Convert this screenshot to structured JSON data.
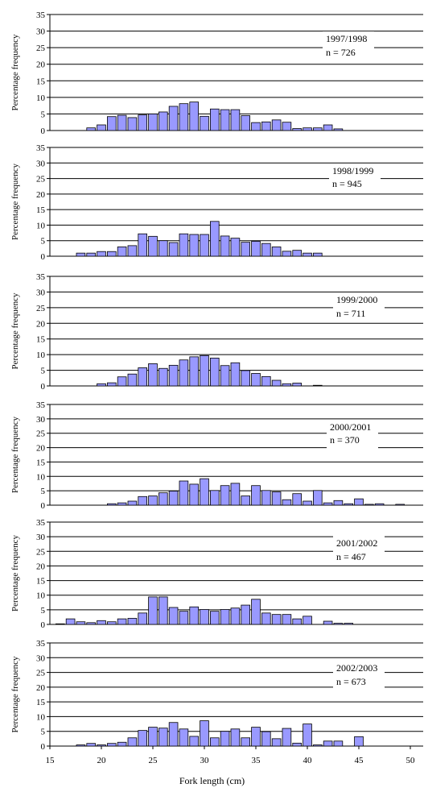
{
  "ylabel": "Percentage frequency",
  "xlabel": "Fork length (cm)",
  "colors": {
    "bar_fill": "#9999ff",
    "bar_stroke": "#000000",
    "grid": "#000000"
  },
  "chart_data": [
    {
      "type": "bar",
      "season": "1997/1998",
      "n_label": "n = 726",
      "ylim": [
        0,
        35
      ],
      "yticks": [
        "0",
        "5",
        "10",
        "15",
        "20",
        "25",
        "30",
        "35"
      ],
      "xlim": [
        15,
        50
      ],
      "xticks": [],
      "categories": [
        16,
        17,
        18,
        19,
        20,
        21,
        22,
        23,
        24,
        25,
        26,
        27,
        28,
        29,
        30,
        31,
        32,
        33,
        34,
        35,
        36,
        37,
        38,
        39,
        40,
        41,
        42,
        43,
        44,
        45,
        46,
        47,
        48,
        49
      ],
      "values": [
        0,
        0,
        0,
        0.8,
        1.7,
        4.2,
        4.6,
        3.9,
        4.7,
        5.0,
        5.6,
        7.3,
        8.1,
        8.6,
        4.3,
        6.5,
        6.3,
        6.3,
        4.5,
        2.4,
        2.6,
        3.2,
        2.5,
        0.6,
        0.8,
        0.8,
        1.7,
        0.5,
        0,
        0,
        0,
        0,
        0,
        0
      ]
    },
    {
      "type": "bar",
      "season": "1998/1999",
      "n_label": "n = 945",
      "ylim": [
        0,
        35
      ],
      "yticks": [
        "0",
        "5",
        "10",
        "15",
        "20",
        "25",
        "30",
        "35"
      ],
      "xlim": [
        15,
        50
      ],
      "xticks": [],
      "categories": [
        16,
        17,
        18,
        19,
        20,
        21,
        22,
        23,
        24,
        25,
        26,
        27,
        28,
        29,
        30,
        31,
        32,
        33,
        34,
        35,
        36,
        37,
        38,
        39,
        40,
        41,
        42,
        43,
        44,
        45,
        46,
        47,
        48,
        49
      ],
      "values": [
        0,
        0,
        1.0,
        1.0,
        1.5,
        1.5,
        3.0,
        3.4,
        7.2,
        6.4,
        5.0,
        4.4,
        7.2,
        7.0,
        7.0,
        11.2,
        6.5,
        5.8,
        4.5,
        4.8,
        4.1,
        3.0,
        1.6,
        1.9,
        1.0,
        1.0,
        0,
        0,
        0,
        0,
        0,
        0,
        0,
        0
      ]
    },
    {
      "type": "bar",
      "season": "1999/2000",
      "n_label": "n = 711",
      "ylim": [
        0,
        35
      ],
      "yticks": [
        "0",
        "5",
        "10",
        "15",
        "20",
        "25",
        "30",
        "35"
      ],
      "xlim": [
        15,
        50
      ],
      "xticks": [],
      "categories": [
        16,
        17,
        18,
        19,
        20,
        21,
        22,
        23,
        24,
        25,
        26,
        27,
        28,
        29,
        30,
        31,
        32,
        33,
        34,
        35,
        36,
        37,
        38,
        39,
        40,
        41,
        42,
        43,
        44,
        45,
        46,
        47,
        48,
        49
      ],
      "values": [
        0,
        0,
        0,
        0,
        0.7,
        1.0,
        2.9,
        3.8,
        5.8,
        7.1,
        5.6,
        6.6,
        8.3,
        9.3,
        9.7,
        8.9,
        6.5,
        7.4,
        4.9,
        4.0,
        3.0,
        1.8,
        0.7,
        0.9,
        0,
        0.2,
        0,
        0,
        0,
        0,
        0,
        0,
        0,
        0
      ]
    },
    {
      "type": "bar",
      "season": "2000/2001",
      "n_label": "n = 370",
      "ylim": [
        0,
        35
      ],
      "yticks": [
        "0",
        "5",
        "10",
        "15",
        "20",
        "25",
        "30",
        "35"
      ],
      "xlim": [
        15,
        50
      ],
      "xticks": [],
      "categories": [
        16,
        17,
        18,
        19,
        20,
        21,
        22,
        23,
        24,
        25,
        26,
        27,
        28,
        29,
        30,
        31,
        32,
        33,
        34,
        35,
        36,
        37,
        38,
        39,
        40,
        41,
        42,
        43,
        44,
        45,
        46,
        47,
        48,
        49
      ],
      "values": [
        0,
        0,
        0,
        0,
        0,
        0.5,
        0.8,
        1.4,
        3.0,
        3.2,
        4.3,
        4.9,
        8.4,
        7.3,
        9.2,
        5.1,
        6.8,
        7.6,
        3.2,
        6.8,
        5.1,
        4.6,
        1.9,
        4.0,
        1.4,
        5.1,
        0.8,
        1.6,
        0.5,
        2.2,
        0.3,
        0.5,
        0,
        0.3
      ]
    },
    {
      "type": "bar",
      "season": "2001/2002",
      "n_label": "n = 467",
      "ylim": [
        0,
        35
      ],
      "yticks": [
        "0",
        "5",
        "10",
        "15",
        "20",
        "25",
        "30",
        "35"
      ],
      "xlim": [
        15,
        50
      ],
      "xticks": [],
      "categories": [
        16,
        17,
        18,
        19,
        20,
        21,
        22,
        23,
        24,
        25,
        26,
        27,
        28,
        29,
        30,
        31,
        32,
        33,
        34,
        35,
        36,
        37,
        38,
        39,
        40,
        41,
        42,
        43,
        44,
        45,
        46,
        47,
        48,
        49
      ],
      "values": [
        0.2,
        1.9,
        0.9,
        0.6,
        1.3,
        0.9,
        1.9,
        2.1,
        3.9,
        9.4,
        9.4,
        5.8,
        4.5,
        6.0,
        5.1,
        4.5,
        5.1,
        5.6,
        6.6,
        8.6,
        3.9,
        3.4,
        3.4,
        1.9,
        2.8,
        0,
        1.1,
        0.4,
        0.4,
        0,
        0,
        0,
        0,
        0
      ]
    },
    {
      "type": "bar",
      "season": "2002/2003",
      "n_label": "n = 673",
      "ylim": [
        0,
        35
      ],
      "yticks": [
        "0",
        "5",
        "10",
        "15",
        "20",
        "25",
        "30",
        "35"
      ],
      "xlim": [
        15,
        50
      ],
      "xticks": [
        "15",
        "20",
        "25",
        "30",
        "35",
        "40",
        "45",
        "50"
      ],
      "categories": [
        16,
        17,
        18,
        19,
        20,
        21,
        22,
        23,
        24,
        25,
        26,
        27,
        28,
        29,
        30,
        31,
        32,
        33,
        34,
        35,
        36,
        37,
        38,
        39,
        40,
        41,
        42,
        43,
        44,
        45,
        46,
        47,
        48,
        49
      ],
      "values": [
        0,
        0,
        0.4,
        0.9,
        0.4,
        0.9,
        1.3,
        2.8,
        5.3,
        6.4,
        6.1,
        8.0,
        5.8,
        3.3,
        8.6,
        2.8,
        5.0,
        5.8,
        2.8,
        6.4,
        4.9,
        2.5,
        6.0,
        1.0,
        7.5,
        0.4,
        1.7,
        1.7,
        0,
        3.2,
        0,
        0,
        0,
        0
      ]
    }
  ]
}
